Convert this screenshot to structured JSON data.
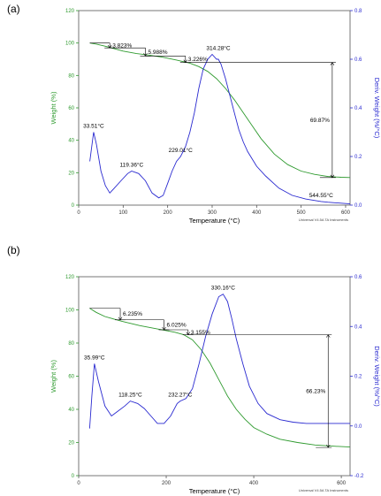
{
  "chart_data": [
    {
      "panel_label": "(a)",
      "type": "line",
      "xlabel": "Temperature (°C)",
      "ylabel_left": "Weight (%)",
      "ylabel_right": "Deriv. Weight (%/°C)",
      "credit": "Universal V4.5A TA Instruments",
      "xlim": [
        0,
        610
      ],
      "ylim_left": [
        0,
        120
      ],
      "ylim_right": [
        0,
        0.8
      ],
      "x_ticks": [
        "0",
        "100",
        "200",
        "300",
        "400",
        "500",
        "600"
      ],
      "x_tick_values": [
        0,
        100,
        200,
        300,
        400,
        500,
        600
      ],
      "y_left_ticks": [
        "0",
        "20",
        "40",
        "60",
        "80",
        "100",
        "120"
      ],
      "y_left_tick_values": [
        0,
        20,
        40,
        60,
        80,
        100,
        120
      ],
      "y_right_ticks": [
        "0.0",
        "0.2",
        "0.4",
        "0.6",
        "0.8"
      ],
      "y_right_tick_values": [
        0,
        0.2,
        0.4,
        0.6,
        0.8
      ],
      "colors": {
        "weight": "#2e9a2e",
        "deriv": "#2a2ad0",
        "annot": "#000000"
      },
      "series": [
        {
          "axis": "left",
          "x": [
            25,
            40,
            60,
            80,
            100,
            130,
            160,
            190,
            220,
            250,
            270,
            290,
            310,
            330,
            350,
            370,
            390,
            410,
            440,
            470,
            500,
            530,
            560,
            590,
            610
          ],
          "y": [
            100,
            99.3,
            98,
            96.5,
            95,
            93.5,
            92.5,
            91.2,
            89.5,
            87.6,
            85.5,
            82.5,
            78,
            72,
            65,
            57,
            49,
            41,
            31.5,
            25,
            21,
            19,
            17.7,
            17.2,
            17
          ]
        },
        {
          "axis": "right",
          "x": [
            25,
            33.5,
            40,
            50,
            60,
            70,
            80,
            95,
            110,
            119,
            135,
            150,
            165,
            180,
            190,
            200,
            210,
            220,
            229,
            240,
            250,
            260,
            270,
            280,
            290,
            300,
            310,
            314,
            320,
            330,
            340,
            350,
            360,
            370,
            380,
            400,
            420,
            450,
            480,
            510,
            545,
            560,
            575,
            590,
            610
          ],
          "y": [
            0.18,
            0.3,
            0.25,
            0.14,
            0.08,
            0.05,
            0.07,
            0.1,
            0.13,
            0.14,
            0.13,
            0.1,
            0.05,
            0.03,
            0.04,
            0.09,
            0.14,
            0.18,
            0.2,
            0.24,
            0.3,
            0.38,
            0.48,
            0.56,
            0.6,
            0.62,
            0.6,
            0.6,
            0.58,
            0.52,
            0.45,
            0.38,
            0.31,
            0.26,
            0.22,
            0.16,
            0.12,
            0.07,
            0.04,
            0.025,
            0.015,
            0.012,
            0.01,
            0.008,
            0.005
          ]
        }
      ],
      "peak_labels": [
        {
          "text": "33.51°C",
          "x": 33.5,
          "y": 0.3
        },
        {
          "text": "119.36°C",
          "x": 119,
          "y": 0.14
        },
        {
          "text": "229.01°C",
          "x": 229,
          "y": 0.2
        },
        {
          "text": "314.28°C",
          "x": 314,
          "y": 0.62
        },
        {
          "text": "544.55°C",
          "x": 545,
          "y": 0.015
        }
      ],
      "steps": [
        {
          "text": "3.823%",
          "x1": 25,
          "x2": 70,
          "y1": 100,
          "y2": 97,
          "dir": "right"
        },
        {
          "text": "5.988%",
          "x1": 70,
          "x2": 150,
          "y1": 97,
          "y2": 92,
          "dir": "right"
        },
        {
          "text": "3.226%",
          "x1": 150,
          "x2": 240,
          "y1": 92,
          "y2": 88,
          "dir": "right"
        }
      ],
      "total": {
        "text": "69.87%",
        "x_from": 240,
        "x_at": 570,
        "y1": 88,
        "y2": 17
      }
    },
    {
      "panel_label": "(b)",
      "type": "line",
      "xlabel": "Temperature (°C)",
      "ylabel_left": "Weight (%)",
      "ylabel_right": "Deriv. Weight (%/°C)",
      "credit": "Universal V4.5A TA Instruments",
      "xlim": [
        0,
        620
      ],
      "ylim_left": [
        0,
        120
      ],
      "ylim_right": [
        -0.2,
        0.6
      ],
      "x_ticks": [
        "0",
        "200",
        "400",
        "600"
      ],
      "x_tick_values": [
        0,
        200,
        400,
        600
      ],
      "y_left_ticks": [
        "0",
        "20",
        "40",
        "60",
        "80",
        "100",
        "120"
      ],
      "y_left_tick_values": [
        0,
        20,
        40,
        60,
        80,
        100,
        120
      ],
      "y_right_ticks": [
        "-0.2",
        "0.0",
        "0.2",
        "0.4",
        "0.6"
      ],
      "y_right_tick_values": [
        -0.2,
        0,
        0.2,
        0.4,
        0.6
      ],
      "colors": {
        "weight": "#2e9a2e",
        "deriv": "#2a2ad0",
        "annot": "#000000"
      },
      "series": [
        {
          "axis": "left",
          "x": [
            25,
            40,
            60,
            80,
            100,
            120,
            140,
            160,
            180,
            200,
            220,
            240,
            260,
            280,
            300,
            320,
            340,
            360,
            380,
            400,
            430,
            460,
            500,
            540,
            580,
            620
          ],
          "y": [
            101,
            98.5,
            96,
            94.5,
            93,
            91.8,
            90.5,
            89.5,
            88.5,
            87.5,
            86.5,
            85,
            82,
            76,
            68,
            58,
            48,
            40,
            34,
            29,
            25,
            22,
            20,
            18.5,
            17.8,
            17.3
          ]
        },
        {
          "axis": "right",
          "x": [
            25,
            30,
            36,
            45,
            60,
            75,
            90,
            105,
            118,
            135,
            150,
            165,
            180,
            195,
            210,
            225,
            232,
            245,
            260,
            275,
            290,
            305,
            320,
            330,
            340,
            350,
            360,
            375,
            390,
            410,
            430,
            460,
            490,
            520,
            550,
            580,
            620
          ],
          "y": [
            -0.01,
            0.12,
            0.25,
            0.18,
            0.08,
            0.04,
            0.06,
            0.08,
            0.1,
            0.09,
            0.07,
            0.04,
            0.01,
            0.01,
            0.04,
            0.09,
            0.1,
            0.11,
            0.15,
            0.25,
            0.36,
            0.45,
            0.52,
            0.53,
            0.5,
            0.43,
            0.35,
            0.25,
            0.16,
            0.09,
            0.05,
            0.025,
            0.015,
            0.01,
            0.01,
            0.01,
            0.01
          ]
        }
      ],
      "peak_labels": [
        {
          "text": "35.99°C",
          "x": 36,
          "y": 0.25
        },
        {
          "text": "118.25°C",
          "x": 118,
          "y": 0.1
        },
        {
          "text": "232.27°C",
          "x": 232,
          "y": 0.1
        },
        {
          "text": "330.16°C",
          "x": 330,
          "y": 0.53
        }
      ],
      "steps": [
        {
          "text": "6.235%",
          "x1": 25,
          "x2": 95,
          "y1": 101,
          "y2": 94,
          "dir": "right"
        },
        {
          "text": "6.025%",
          "x1": 95,
          "x2": 195,
          "y1": 94,
          "y2": 88,
          "dir": "right"
        },
        {
          "text": "3.155%",
          "x1": 195,
          "x2": 250,
          "y1": 88,
          "y2": 85,
          "dir": "right"
        }
      ],
      "total": {
        "text": "66.23%",
        "x_from": 250,
        "x_at": 570,
        "y1": 85,
        "y2": 17
      }
    }
  ]
}
